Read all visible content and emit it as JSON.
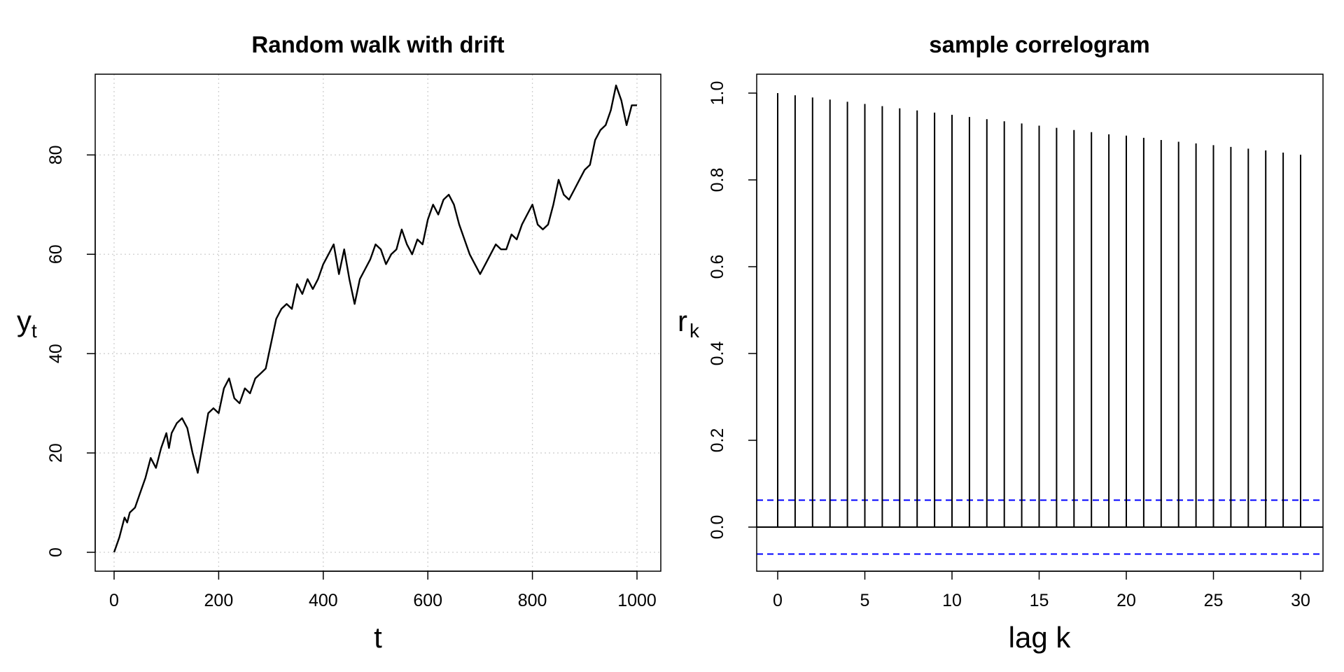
{
  "chart_data": [
    {
      "type": "line",
      "title": "Random walk with drift",
      "xlabel": "t",
      "ylabel_main": "y",
      "ylabel_sub": "t",
      "xlim": [
        0,
        1000
      ],
      "ylim": [
        0,
        94
      ],
      "xticks": [
        0,
        200,
        400,
        600,
        800,
        1000
      ],
      "yticks": [
        0,
        20,
        40,
        60,
        80
      ],
      "grid": true,
      "series": [
        {
          "color": "#000000",
          "x": [
            0,
            10,
            20,
            25,
            30,
            40,
            50,
            60,
            70,
            80,
            90,
            100,
            105,
            110,
            120,
            130,
            140,
            150,
            155,
            160,
            170,
            180,
            190,
            200,
            210,
            220,
            230,
            240,
            250,
            260,
            270,
            280,
            290,
            300,
            310,
            320,
            330,
            340,
            350,
            360,
            370,
            380,
            390,
            400,
            410,
            420,
            430,
            440,
            450,
            460,
            470,
            480,
            490,
            500,
            510,
            520,
            530,
            540,
            550,
            560,
            570,
            580,
            590,
            600,
            610,
            620,
            630,
            640,
            650,
            660,
            670,
            680,
            690,
            700,
            710,
            720,
            730,
            740,
            750,
            760,
            770,
            780,
            790,
            800,
            810,
            820,
            830,
            840,
            850,
            860,
            870,
            880,
            890,
            900,
            910,
            920,
            930,
            940,
            950,
            960,
            970,
            980,
            990,
            1000
          ],
          "y": [
            0,
            3,
            7,
            6,
            8,
            9,
            12,
            15,
            19,
            17,
            21,
            24,
            21,
            24,
            26,
            27,
            25,
            20,
            18,
            16,
            22,
            28,
            29,
            28,
            33,
            35,
            31,
            30,
            33,
            32,
            35,
            36,
            37,
            42,
            47,
            49,
            50,
            49,
            54,
            52,
            55,
            53,
            55,
            58,
            60,
            62,
            56,
            61,
            55,
            50,
            55,
            57,
            59,
            62,
            61,
            58,
            60,
            61,
            65,
            62,
            60,
            63,
            62,
            67,
            70,
            68,
            71,
            72,
            70,
            66,
            63,
            60,
            58,
            56,
            58,
            60,
            62,
            61,
            61,
            64,
            63,
            66,
            68,
            70,
            66,
            65,
            66,
            70,
            75,
            72,
            71,
            73,
            75,
            77,
            78,
            83,
            85,
            86,
            89,
            94,
            91,
            86,
            90,
            90
          ]
        }
      ]
    },
    {
      "type": "bar",
      "title": "sample correlogram",
      "xlabel": "lag k",
      "ylabel_main": "r",
      "ylabel_sub": "k",
      "xlim": [
        -1,
        31
      ],
      "ylim": [
        -0.1,
        1.0
      ],
      "xticks": [
        0,
        5,
        10,
        15,
        20,
        25,
        30
      ],
      "yticks": [
        0.0,
        0.2,
        0.4,
        0.6,
        0.8,
        1.0
      ],
      "ytick_labels": [
        "0.0",
        "0.2",
        "0.4",
        "0.6",
        "0.8",
        "1.0"
      ],
      "lags": [
        0,
        1,
        2,
        3,
        4,
        5,
        6,
        7,
        8,
        9,
        10,
        11,
        12,
        13,
        14,
        15,
        16,
        17,
        18,
        19,
        20,
        21,
        22,
        23,
        24,
        25,
        26,
        27,
        28,
        29,
        30
      ],
      "values": [
        1.0,
        0.995,
        0.99,
        0.985,
        0.98,
        0.975,
        0.97,
        0.965,
        0.96,
        0.955,
        0.95,
        0.945,
        0.94,
        0.935,
        0.93,
        0.925,
        0.92,
        0.915,
        0.91,
        0.905,
        0.902,
        0.897,
        0.892,
        0.888,
        0.884,
        0.88,
        0.876,
        0.872,
        0.868,
        0.863,
        0.858
      ],
      "conf_bounds": [
        0.062,
        -0.062
      ],
      "conf_color": "#0000ff",
      "zero_line": true
    }
  ]
}
